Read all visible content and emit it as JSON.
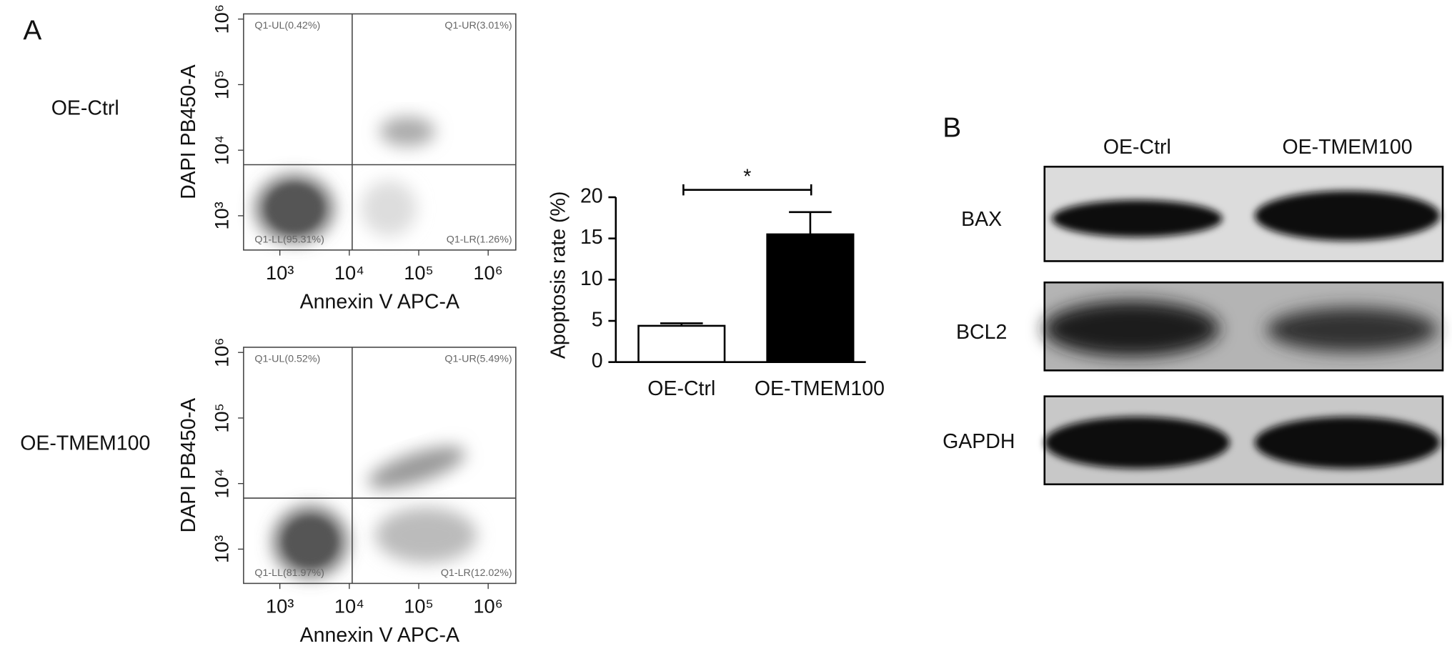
{
  "panel_labels": [
    "A",
    "B"
  ],
  "row_labels": [
    "OE-Ctrl",
    "OE-TMEM100"
  ],
  "chart_data": [
    {
      "type": "flow",
      "xlabel": "Annexin V APC-A",
      "ylabel": "DAPI PB450-A",
      "quadrants": [
        "Q1-UL(0.42%)",
        "Q1-UR(3.01%)",
        "Q1-LL(95.31%)",
        "Q1-LR(1.26%)"
      ],
      "log_scale": true,
      "xlim": [
        300,
        2500000
      ],
      "ylim": [
        300,
        1200000
      ],
      "xticks": [
        {
          "value": 1000,
          "label": "10³"
        },
        {
          "value": 10000,
          "label": "10⁴"
        },
        {
          "value": 100000,
          "label": "10⁵"
        },
        {
          "value": 1000000,
          "label": "10⁶"
        }
      ],
      "yticks": [
        {
          "value": 1000,
          "label": "10³"
        },
        {
          "value": 10000,
          "label": "10⁴"
        },
        {
          "value": 100000,
          "label": "10⁵"
        },
        {
          "value": 1000000,
          "label": "10⁶"
        }
      ],
      "gate": {
        "x": 11000,
        "y": 6000
      }
    },
    {
      "type": "flow",
      "xlabel": "Annexin V APC-A",
      "ylabel": "DAPI PB450-A",
      "quadrants": [
        "Q1-UL(0.52%)",
        "Q1-UR(5.49%)",
        "Q1-LL(81.97%)",
        "Q1-LR(12.02%)"
      ],
      "log_scale": true,
      "xlim": [
        300,
        2500000
      ],
      "ylim": [
        300,
        1200000
      ],
      "xticks": [
        {
          "value": 1000,
          "label": "10³"
        },
        {
          "value": 10000,
          "label": "10⁴"
        },
        {
          "value": 100000,
          "label": "10⁵"
        },
        {
          "value": 1000000,
          "label": "10⁶"
        }
      ],
      "yticks": [
        {
          "value": 1000,
          "label": "10³"
        },
        {
          "value": 10000,
          "label": "10⁴"
        },
        {
          "value": 100000,
          "label": "10⁵"
        },
        {
          "value": 1000000,
          "label": "10⁶"
        }
      ],
      "gate": {
        "x": 11000,
        "y": 6000
      }
    },
    {
      "type": "bar",
      "ylabel": "Apoptosis rate (%)",
      "categories": [
        "OE-Ctrl",
        "OE-TMEM100"
      ],
      "values": [
        4.4,
        15.5
      ],
      "errors": [
        0.3,
        2.7
      ],
      "colors": [
        "#ffffff",
        "#000000"
      ],
      "ylim": [
        0,
        20
      ],
      "yticks": [
        0,
        5,
        10,
        15,
        20
      ],
      "annotation": "*"
    }
  ],
  "blot": {
    "lanes": [
      "OE-Ctrl",
      "OE-TMEM100"
    ],
    "bands": [
      "BAX",
      "BCL2",
      "GAPDH"
    ]
  }
}
